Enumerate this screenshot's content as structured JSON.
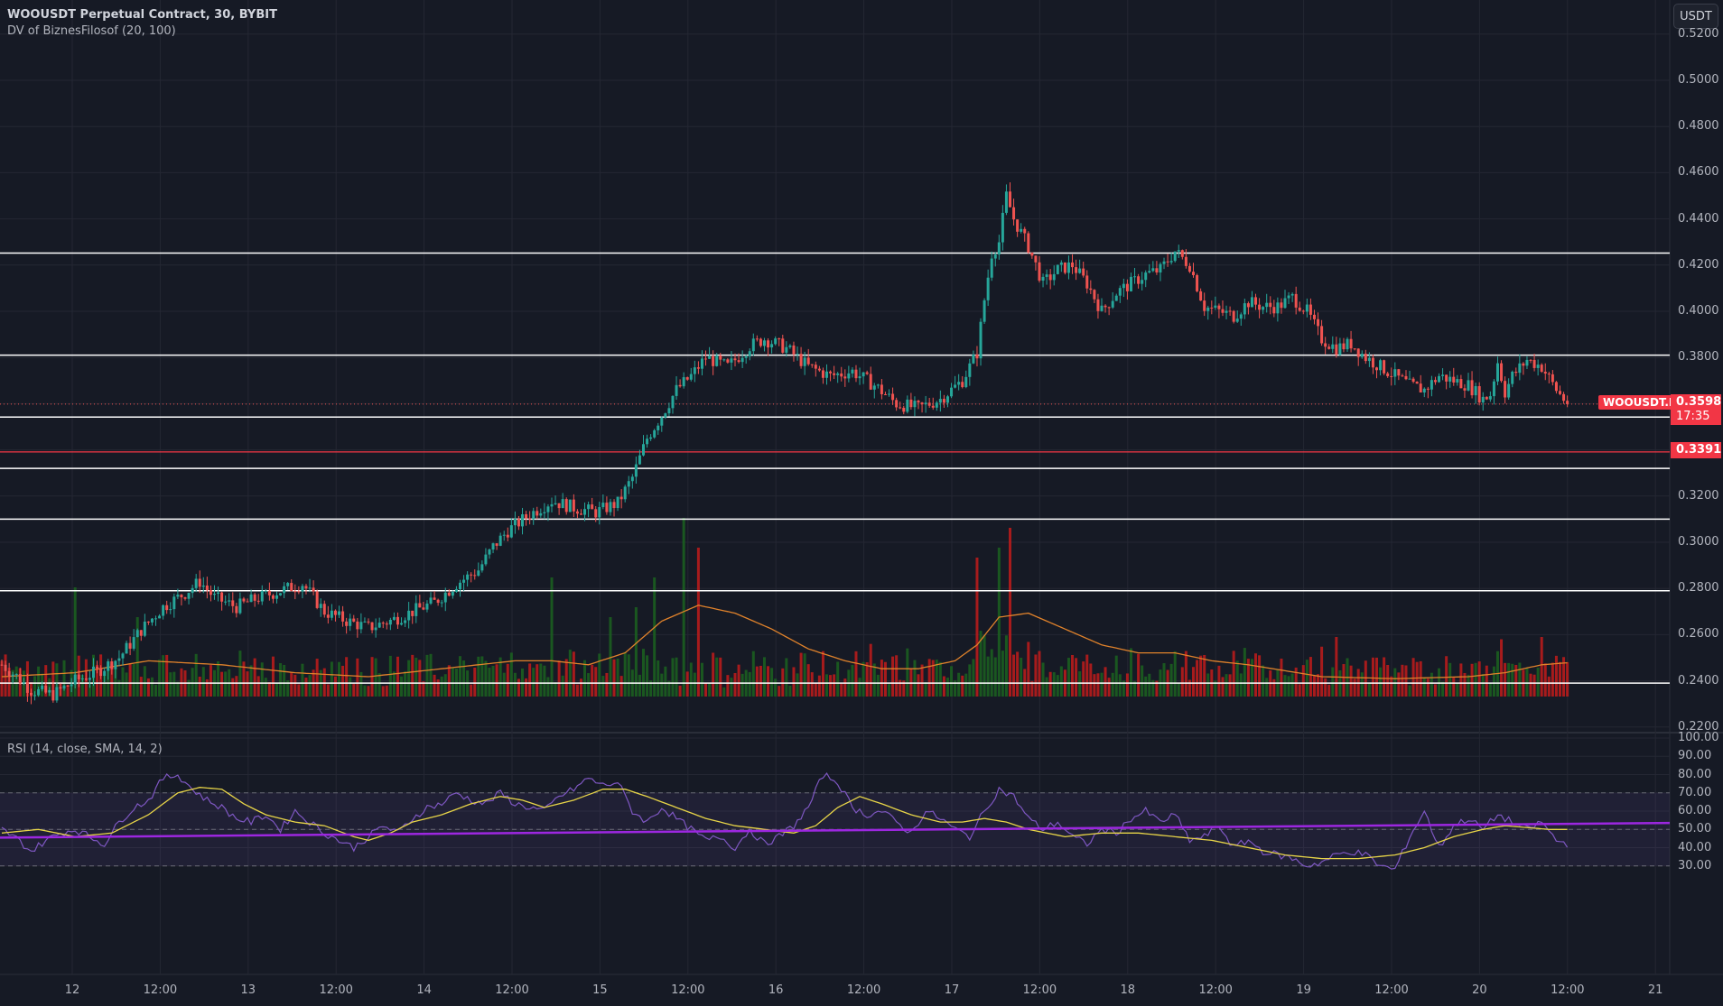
{
  "header": {
    "symbol_title": "WOOUSDT Perpetual Contract, 30, BYBIT",
    "indicator_title": "DV of BiznesFilosof (20, 100)",
    "currency_button": "USDT"
  },
  "rsi_panel": {
    "title": "RSI (14, close, SMA, 14, 2)"
  },
  "price_tags": {
    "symbol_tag": "WOOUSDT.P",
    "last_price": "0.3598",
    "countdown": "17:35",
    "level_price": "0.3391"
  },
  "colors": {
    "background": "#161a25",
    "grid": "#242733",
    "up": "#26a69a",
    "down": "#ef5350",
    "volume_up": "#1b5e20",
    "volume_down": "#b71c1c",
    "volume_ma": "#e0822b",
    "level_line": "#ffffff",
    "red_level": "#f23645",
    "rsi_line": "#7e57c2",
    "rsi_ma": "#e8d548",
    "rsi_trend": "#9c27e0",
    "rsi_band": "#7e57c2"
  },
  "chart_data": [
    {
      "type": "candlestick",
      "title": "WOOUSDT Perpetual Contract, 30, BYBIT",
      "timeframe": "30m",
      "xlabel": "",
      "ylabel": "USDT",
      "ylim": [
        0.22,
        0.52
      ],
      "y_ticks": [
        "0.5200",
        "0.5000",
        "0.4800",
        "0.4600",
        "0.4400",
        "0.4200",
        "0.4000",
        "0.3800",
        "0.3600",
        "0.3400",
        "0.3200",
        "0.3000",
        "0.2800",
        "0.2600",
        "0.2400",
        "0.2200"
      ],
      "visible_y_tick_labels": [
        "0.5200",
        "0.5000",
        "0.4800",
        "0.4600",
        "0.4400",
        "0.4200",
        "0.4000",
        "0.3800",
        "0.3200",
        "0.3000",
        "0.2800",
        "0.2600",
        "0.2400",
        "0.2200"
      ],
      "x_ticks": [
        "12",
        "12:00",
        "13",
        "12:00",
        "14",
        "12:00",
        "15",
        "12:00",
        "16",
        "12:00",
        "17",
        "12:00",
        "18",
        "12:00",
        "19",
        "12:00",
        "20",
        "12:00",
        "21"
      ],
      "price_path": [
        [
          0,
          0.247
        ],
        [
          4,
          0.242
        ],
        [
          8,
          0.236
        ],
        [
          14,
          0.234
        ],
        [
          20,
          0.24
        ],
        [
          26,
          0.244
        ],
        [
          32,
          0.25
        ],
        [
          38,
          0.262
        ],
        [
          44,
          0.272
        ],
        [
          50,
          0.278
        ],
        [
          54,
          0.283
        ],
        [
          58,
          0.276
        ],
        [
          64,
          0.272
        ],
        [
          70,
          0.276
        ],
        [
          76,
          0.279
        ],
        [
          82,
          0.282
        ],
        [
          88,
          0.27
        ],
        [
          94,
          0.266
        ],
        [
          100,
          0.263
        ],
        [
          106,
          0.266
        ],
        [
          112,
          0.27
        ],
        [
          118,
          0.274
        ],
        [
          124,
          0.282
        ],
        [
          130,
          0.288
        ],
        [
          134,
          0.298
        ],
        [
          138,
          0.305
        ],
        [
          144,
          0.312
        ],
        [
          150,
          0.318
        ],
        [
          156,
          0.315
        ],
        [
          162,
          0.313
        ],
        [
          168,
          0.317
        ],
        [
          172,
          0.328
        ],
        [
          176,
          0.345
        ],
        [
          180,
          0.355
        ],
        [
          184,
          0.366
        ],
        [
          188,
          0.372
        ],
        [
          192,
          0.38
        ],
        [
          198,
          0.376
        ],
        [
          204,
          0.385
        ],
        [
          208,
          0.388
        ],
        [
          214,
          0.384
        ],
        [
          220,
          0.376
        ],
        [
          226,
          0.372
        ],
        [
          232,
          0.374
        ],
        [
          238,
          0.368
        ],
        [
          244,
          0.36
        ],
        [
          250,
          0.358
        ],
        [
          256,
          0.362
        ],
        [
          262,
          0.37
        ],
        [
          266,
          0.382
        ],
        [
          268,
          0.405
        ],
        [
          270,
          0.425
        ],
        [
          272,
          0.43
        ],
        [
          274,
          0.45
        ],
        [
          276,
          0.44
        ],
        [
          280,
          0.428
        ],
        [
          284,
          0.412
        ],
        [
          288,
          0.418
        ],
        [
          292,
          0.42
        ],
        [
          296,
          0.412
        ],
        [
          300,
          0.4
        ],
        [
          304,
          0.408
        ],
        [
          308,
          0.412
        ],
        [
          312,
          0.416
        ],
        [
          316,
          0.418
        ],
        [
          320,
          0.426
        ],
        [
          324,
          0.42
        ],
        [
          328,
          0.402
        ],
        [
          332,
          0.4
        ],
        [
          336,
          0.398
        ],
        [
          340,
          0.404
        ],
        [
          344,
          0.402
        ],
        [
          348,
          0.402
        ],
        [
          352,
          0.406
        ],
        [
          356,
          0.4
        ],
        [
          360,
          0.388
        ],
        [
          364,
          0.384
        ],
        [
          368,
          0.386
        ],
        [
          372,
          0.38
        ],
        [
          376,
          0.376
        ],
        [
          380,
          0.372
        ],
        [
          384,
          0.368
        ],
        [
          388,
          0.366
        ],
        [
          392,
          0.372
        ],
        [
          396,
          0.37
        ],
        [
          400,
          0.368
        ],
        [
          404,
          0.362
        ],
        [
          406,
          0.364
        ],
        [
          408,
          0.378
        ],
        [
          410,
          0.365
        ],
        [
          412,
          0.372
        ],
        [
          416,
          0.379
        ],
        [
          420,
          0.376
        ],
        [
          424,
          0.366
        ],
        [
          427,
          0.36
        ]
      ],
      "last_close": 0.3598,
      "horizontal_levels": [
        0.4252,
        0.381,
        0.3542,
        0.332,
        0.31,
        0.279,
        0.239
      ],
      "red_level": 0.3391,
      "current_price_line": 0.3598,
      "volume": {
        "ma_label": "DV of BiznesFilosof (20, 100)",
        "spike_candles": [
          [
            20,
            55
          ],
          [
            37,
            40
          ],
          [
            150,
            60
          ],
          [
            166,
            40
          ],
          [
            173,
            45
          ],
          [
            178,
            60
          ],
          [
            186,
            90
          ],
          [
            190,
            75
          ],
          [
            266,
            70
          ],
          [
            272,
            75
          ],
          [
            275,
            85
          ],
          [
            364,
            30
          ],
          [
            420,
            30
          ]
        ],
        "ma_path": [
          [
            0,
            10
          ],
          [
            20,
            12
          ],
          [
            40,
            18
          ],
          [
            60,
            16
          ],
          [
            80,
            12
          ],
          [
            100,
            10
          ],
          [
            120,
            14
          ],
          [
            140,
            18
          ],
          [
            150,
            18
          ],
          [
            160,
            16
          ],
          [
            170,
            22
          ],
          [
            180,
            38
          ],
          [
            190,
            46
          ],
          [
            200,
            42
          ],
          [
            210,
            34
          ],
          [
            220,
            24
          ],
          [
            230,
            18
          ],
          [
            240,
            14
          ],
          [
            250,
            14
          ],
          [
            260,
            18
          ],
          [
            266,
            26
          ],
          [
            272,
            40
          ],
          [
            280,
            42
          ],
          [
            290,
            34
          ],
          [
            300,
            26
          ],
          [
            310,
            22
          ],
          [
            320,
            22
          ],
          [
            330,
            18
          ],
          [
            340,
            16
          ],
          [
            350,
            13
          ],
          [
            360,
            10
          ],
          [
            380,
            9
          ],
          [
            400,
            10
          ],
          [
            410,
            12
          ],
          [
            420,
            16
          ],
          [
            427,
            17
          ]
        ]
      }
    },
    {
      "type": "line",
      "title": "RSI (14, close, SMA, 14, 2)",
      "ylim": [
        25,
        100
      ],
      "y_ticks": [
        "100.00",
        "90.00",
        "80.00",
        "70.00",
        "60.00",
        "50.00",
        "40.00",
        "30.00"
      ],
      "bands": {
        "upper": 70,
        "middle": 50,
        "lower": 30
      },
      "rsi_path": [
        [
          0,
          50
        ],
        [
          4,
          45
        ],
        [
          8,
          38
        ],
        [
          12,
          44
        ],
        [
          16,
          48
        ],
        [
          20,
          50
        ],
        [
          24,
          46
        ],
        [
          28,
          42
        ],
        [
          32,
          54
        ],
        [
          36,
          62
        ],
        [
          40,
          66
        ],
        [
          44,
          78
        ],
        [
          48,
          80
        ],
        [
          52,
          72
        ],
        [
          56,
          66
        ],
        [
          60,
          62
        ],
        [
          64,
          56
        ],
        [
          68,
          54
        ],
        [
          72,
          58
        ],
        [
          76,
          50
        ],
        [
          80,
          60
        ],
        [
          84,
          54
        ],
        [
          88,
          48
        ],
        [
          92,
          44
        ],
        [
          96,
          40
        ],
        [
          100,
          46
        ],
        [
          104,
          52
        ],
        [
          108,
          48
        ],
        [
          112,
          56
        ],
        [
          116,
          62
        ],
        [
          120,
          64
        ],
        [
          124,
          70
        ],
        [
          128,
          66
        ],
        [
          132,
          64
        ],
        [
          136,
          70
        ],
        [
          140,
          64
        ],
        [
          144,
          62
        ],
        [
          148,
          60
        ],
        [
          152,
          68
        ],
        [
          156,
          72
        ],
        [
          160,
          78
        ],
        [
          164,
          74
        ],
        [
          168,
          76
        ],
        [
          172,
          60
        ],
        [
          176,
          54
        ],
        [
          180,
          62
        ],
        [
          184,
          56
        ],
        [
          188,
          50
        ],
        [
          192,
          44
        ],
        [
          196,
          46
        ],
        [
          200,
          40
        ],
        [
          204,
          50
        ],
        [
          208,
          42
        ],
        [
          212,
          46
        ],
        [
          216,
          52
        ],
        [
          220,
          62
        ],
        [
          224,
          80
        ],
        [
          228,
          76
        ],
        [
          232,
          62
        ],
        [
          236,
          58
        ],
        [
          240,
          60
        ],
        [
          244,
          54
        ],
        [
          248,
          48
        ],
        [
          252,
          60
        ],
        [
          256,
          56
        ],
        [
          260,
          50
        ],
        [
          264,
          46
        ],
        [
          268,
          60
        ],
        [
          272,
          72
        ],
        [
          276,
          68
        ],
        [
          280,
          56
        ],
        [
          284,
          50
        ],
        [
          288,
          54
        ],
        [
          292,
          46
        ],
        [
          296,
          42
        ],
        [
          300,
          50
        ],
        [
          304,
          48
        ],
        [
          308,
          56
        ],
        [
          312,
          60
        ],
        [
          316,
          54
        ],
        [
          320,
          58
        ],
        [
          324,
          44
        ],
        [
          328,
          46
        ],
        [
          332,
          52
        ],
        [
          336,
          40
        ],
        [
          340,
          44
        ],
        [
          344,
          38
        ],
        [
          348,
          36
        ],
        [
          352,
          34
        ],
        [
          356,
          30
        ],
        [
          360,
          32
        ],
        [
          364,
          36
        ],
        [
          368,
          38
        ],
        [
          372,
          36
        ],
        [
          376,
          30
        ],
        [
          380,
          28
        ],
        [
          384,
          46
        ],
        [
          388,
          60
        ],
        [
          392,
          40
        ],
        [
          396,
          52
        ],
        [
          400,
          56
        ],
        [
          404,
          50
        ],
        [
          408,
          58
        ],
        [
          412,
          54
        ],
        [
          416,
          50
        ],
        [
          420,
          54
        ],
        [
          424,
          44
        ],
        [
          427,
          42
        ]
      ],
      "rsi_ma_path": [
        [
          0,
          48
        ],
        [
          10,
          50
        ],
        [
          20,
          46
        ],
        [
          30,
          48
        ],
        [
          40,
          58
        ],
        [
          48,
          70
        ],
        [
          54,
          73
        ],
        [
          60,
          72
        ],
        [
          66,
          64
        ],
        [
          72,
          58
        ],
        [
          80,
          54
        ],
        [
          88,
          52
        ],
        [
          96,
          46
        ],
        [
          100,
          44
        ],
        [
          106,
          48
        ],
        [
          112,
          54
        ],
        [
          120,
          58
        ],
        [
          128,
          64
        ],
        [
          136,
          68
        ],
        [
          142,
          66
        ],
        [
          148,
          62
        ],
        [
          156,
          66
        ],
        [
          164,
          72
        ],
        [
          170,
          72
        ],
        [
          176,
          68
        ],
        [
          184,
          62
        ],
        [
          192,
          56
        ],
        [
          200,
          52
        ],
        [
          208,
          50
        ],
        [
          216,
          48
        ],
        [
          222,
          52
        ],
        [
          228,
          62
        ],
        [
          234,
          68
        ],
        [
          240,
          64
        ],
        [
          248,
          58
        ],
        [
          256,
          54
        ],
        [
          262,
          54
        ],
        [
          268,
          56
        ],
        [
          274,
          54
        ],
        [
          280,
          50
        ],
        [
          290,
          46
        ],
        [
          300,
          48
        ],
        [
          310,
          48
        ],
        [
          320,
          46
        ],
        [
          330,
          44
        ],
        [
          340,
          40
        ],
        [
          350,
          36
        ],
        [
          360,
          34
        ],
        [
          370,
          34
        ],
        [
          380,
          36
        ],
        [
          388,
          40
        ],
        [
          396,
          46
        ],
        [
          404,
          50
        ],
        [
          410,
          52
        ],
        [
          416,
          51
        ],
        [
          422,
          50
        ],
        [
          427,
          50
        ]
      ],
      "trend_line": {
        "from": [
          0,
          45.5
        ],
        "to_at_axis": 53.5
      }
    }
  ]
}
